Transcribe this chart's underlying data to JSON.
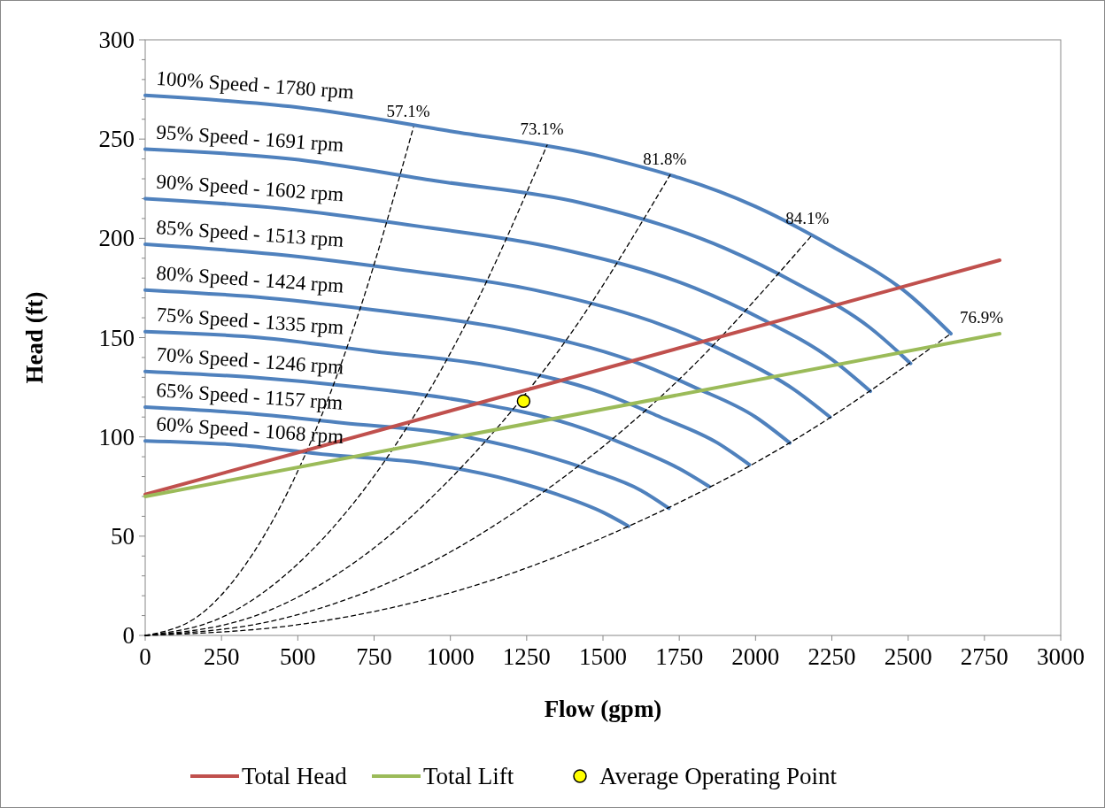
{
  "chart_data": {
    "type": "line",
    "xlabel": "Flow (gpm)",
    "ylabel": "Head (ft)",
    "xlim": [
      0,
      3000
    ],
    "xticks": [
      0,
      250,
      500,
      750,
      1000,
      1250,
      1500,
      1750,
      2000,
      2250,
      2500,
      2750,
      3000
    ],
    "ylim": [
      0,
      300
    ],
    "yticks": [
      0,
      {
        "value": 10,
        "label": null
      },
      {
        "value": 20,
        "label": null
      },
      {
        "value": 30,
        "label": null
      },
      {
        "value": 40,
        "label": null
      },
      50,
      {
        "value": 60,
        "label": null
      },
      {
        "value": 70,
        "label": null
      },
      {
        "value": 80,
        "label": null
      },
      {
        "value": 90,
        "label": null
      },
      100,
      {
        "value": 110,
        "label": null
      },
      {
        "value": 120,
        "label": null
      },
      {
        "value": 130,
        "label": null
      },
      {
        "value": 140,
        "label": null
      },
      150,
      {
        "value": 160,
        "label": null
      },
      {
        "value": 170,
        "label": null
      },
      {
        "value": 180,
        "label": null
      },
      {
        "value": 190,
        "label": null
      },
      200,
      {
        "value": 210,
        "label": null
      },
      {
        "value": 220,
        "label": null
      },
      {
        "value": 230,
        "label": null
      },
      {
        "value": 240,
        "label": null
      },
      250,
      {
        "value": 260,
        "label": null
      },
      {
        "value": 270,
        "label": null
      },
      {
        "value": 280,
        "label": null
      },
      {
        "value": 290,
        "label": null
      },
      300
    ],
    "grid": false,
    "legend": "bottom",
    "series": [
      {
        "color": "#4f81bd",
        "x": [
          0,
          500,
          1000,
          1500,
          2000,
          2250,
          2500,
          2640
        ],
        "values": [
          272,
          266,
          254,
          241,
          216,
          196,
          172,
          152
        ]
      },
      {
        "color": "#4f81bd",
        "x": [
          0,
          475,
          950,
          1425,
          1900,
          2138,
          2375,
          2508
        ],
        "values": [
          245,
          240,
          229,
          218,
          195,
          177,
          155,
          137
        ]
      },
      {
        "color": "#4f81bd",
        "x": [
          0,
          450,
          900,
          1350,
          1800,
          2025,
          2250,
          2376
        ],
        "values": [
          220,
          215,
          206,
          195,
          175,
          159,
          139,
          123
        ]
      },
      {
        "color": "#4f81bd",
        "x": [
          0,
          425,
          850,
          1275,
          1700,
          1913,
          2125,
          2244
        ],
        "values": [
          197,
          192,
          184,
          174,
          156,
          142,
          124,
          110
        ]
      },
      {
        "color": "#4f81bd",
        "x": [
          0,
          400,
          800,
          1200,
          1600,
          1800,
          2000,
          2112
        ],
        "values": [
          174,
          170,
          163,
          154,
          138,
          125,
          110,
          97
        ]
      },
      {
        "color": "#4f81bd",
        "x": [
          0,
          375,
          750,
          1125,
          1500,
          1688,
          1875,
          1980
        ],
        "values": [
          153,
          150,
          143,
          136,
          122,
          110,
          97,
          86
        ]
      },
      {
        "color": "#4f81bd",
        "x": [
          0,
          350,
          700,
          1050,
          1400,
          1575,
          1750,
          1848
        ],
        "values": [
          133,
          130,
          125,
          118,
          106,
          96,
          84,
          75
        ]
      },
      {
        "color": "#4f81bd",
        "x": [
          0,
          325,
          650,
          975,
          1300,
          1463,
          1625,
          1716
        ],
        "values": [
          115,
          112,
          107,
          102,
          91,
          83,
          73,
          64
        ]
      },
      {
        "color": "#4f81bd",
        "x": [
          0,
          300,
          600,
          900,
          1200,
          1350,
          1500,
          1584
        ],
        "values": [
          98,
          96,
          91,
          87,
          78,
          71,
          62,
          55
        ]
      },
      {
        "color": "#000000",
        "line_style": "dashed",
        "x": [
          0,
          176,
          352,
          527,
          703,
          879
        ],
        "values": [
          0,
          10,
          41,
          92,
          164,
          256
        ]
      },
      {
        "color": "#000000",
        "line_style": "dashed",
        "x": [
          0,
          263,
          527,
          790,
          1054,
          1317
        ],
        "values": [
          0,
          10,
          40,
          89,
          158,
          247
        ]
      },
      {
        "color": "#000000",
        "line_style": "dashed",
        "x": [
          0,
          344,
          688,
          1032,
          1376,
          1720
        ],
        "values": [
          0,
          9,
          37,
          84,
          148,
          232
        ]
      },
      {
        "color": "#000000",
        "line_style": "dashed",
        "x": [
          0,
          437,
          875,
          1312,
          1750,
          2187
        ],
        "values": [
          0,
          8,
          32,
          73,
          129,
          202
        ]
      },
      {
        "color": "#000000",
        "line_style": "dashed",
        "x": [
          0,
          528,
          1056,
          1584,
          2112,
          2640
        ],
        "values": [
          0,
          6,
          24,
          55,
          97,
          152
        ]
      },
      {
        "name": "Total Head",
        "color": "#c0504d",
        "x": [
          0,
          2800
        ],
        "values": [
          71,
          189
        ]
      },
      {
        "name": "Total Lift",
        "color": "#9bbb59",
        "x": [
          0,
          2800
        ],
        "values": [
          70,
          152
        ]
      },
      {
        "name": "Average Operating Point",
        "type": "scatter",
        "marker": "circle",
        "color": "#ffff00",
        "x": [
          1240
        ],
        "values": [
          118
        ]
      }
    ],
    "annotations": [
      {
        "text": "100% Speed - 1780 rpm",
        "x": 0,
        "y": 272
      },
      {
        "text": "95% Speed - 1691 rpm",
        "x": 0,
        "y": 245
      },
      {
        "text": "90% Speed - 1602 rpm",
        "x": 0,
        "y": 220
      },
      {
        "text": "85% Speed - 1513 rpm",
        "x": 0,
        "y": 197
      },
      {
        "text": "80% Speed - 1424 rpm",
        "x": 0,
        "y": 174
      },
      {
        "text": "75% Speed - 1335 rpm",
        "x": 0,
        "y": 153
      },
      {
        "text": "70% Speed - 1246 rpm",
        "x": 0,
        "y": 133
      },
      {
        "text": "65% Speed - 1157 rpm",
        "x": 0,
        "y": 115
      },
      {
        "text": "60% Speed - 1068 rpm",
        "x": 0,
        "y": 98
      },
      {
        "text": "57.1%",
        "x": 879,
        "y": 256
      },
      {
        "text": "73.1%",
        "x": 1317,
        "y": 247
      },
      {
        "text": "81.8%",
        "x": 1720,
        "y": 232
      },
      {
        "text": "84.1%",
        "x": 2187,
        "y": 202
      },
      {
        "text": "76.9%",
        "x": 2640,
        "y": 152
      }
    ]
  }
}
